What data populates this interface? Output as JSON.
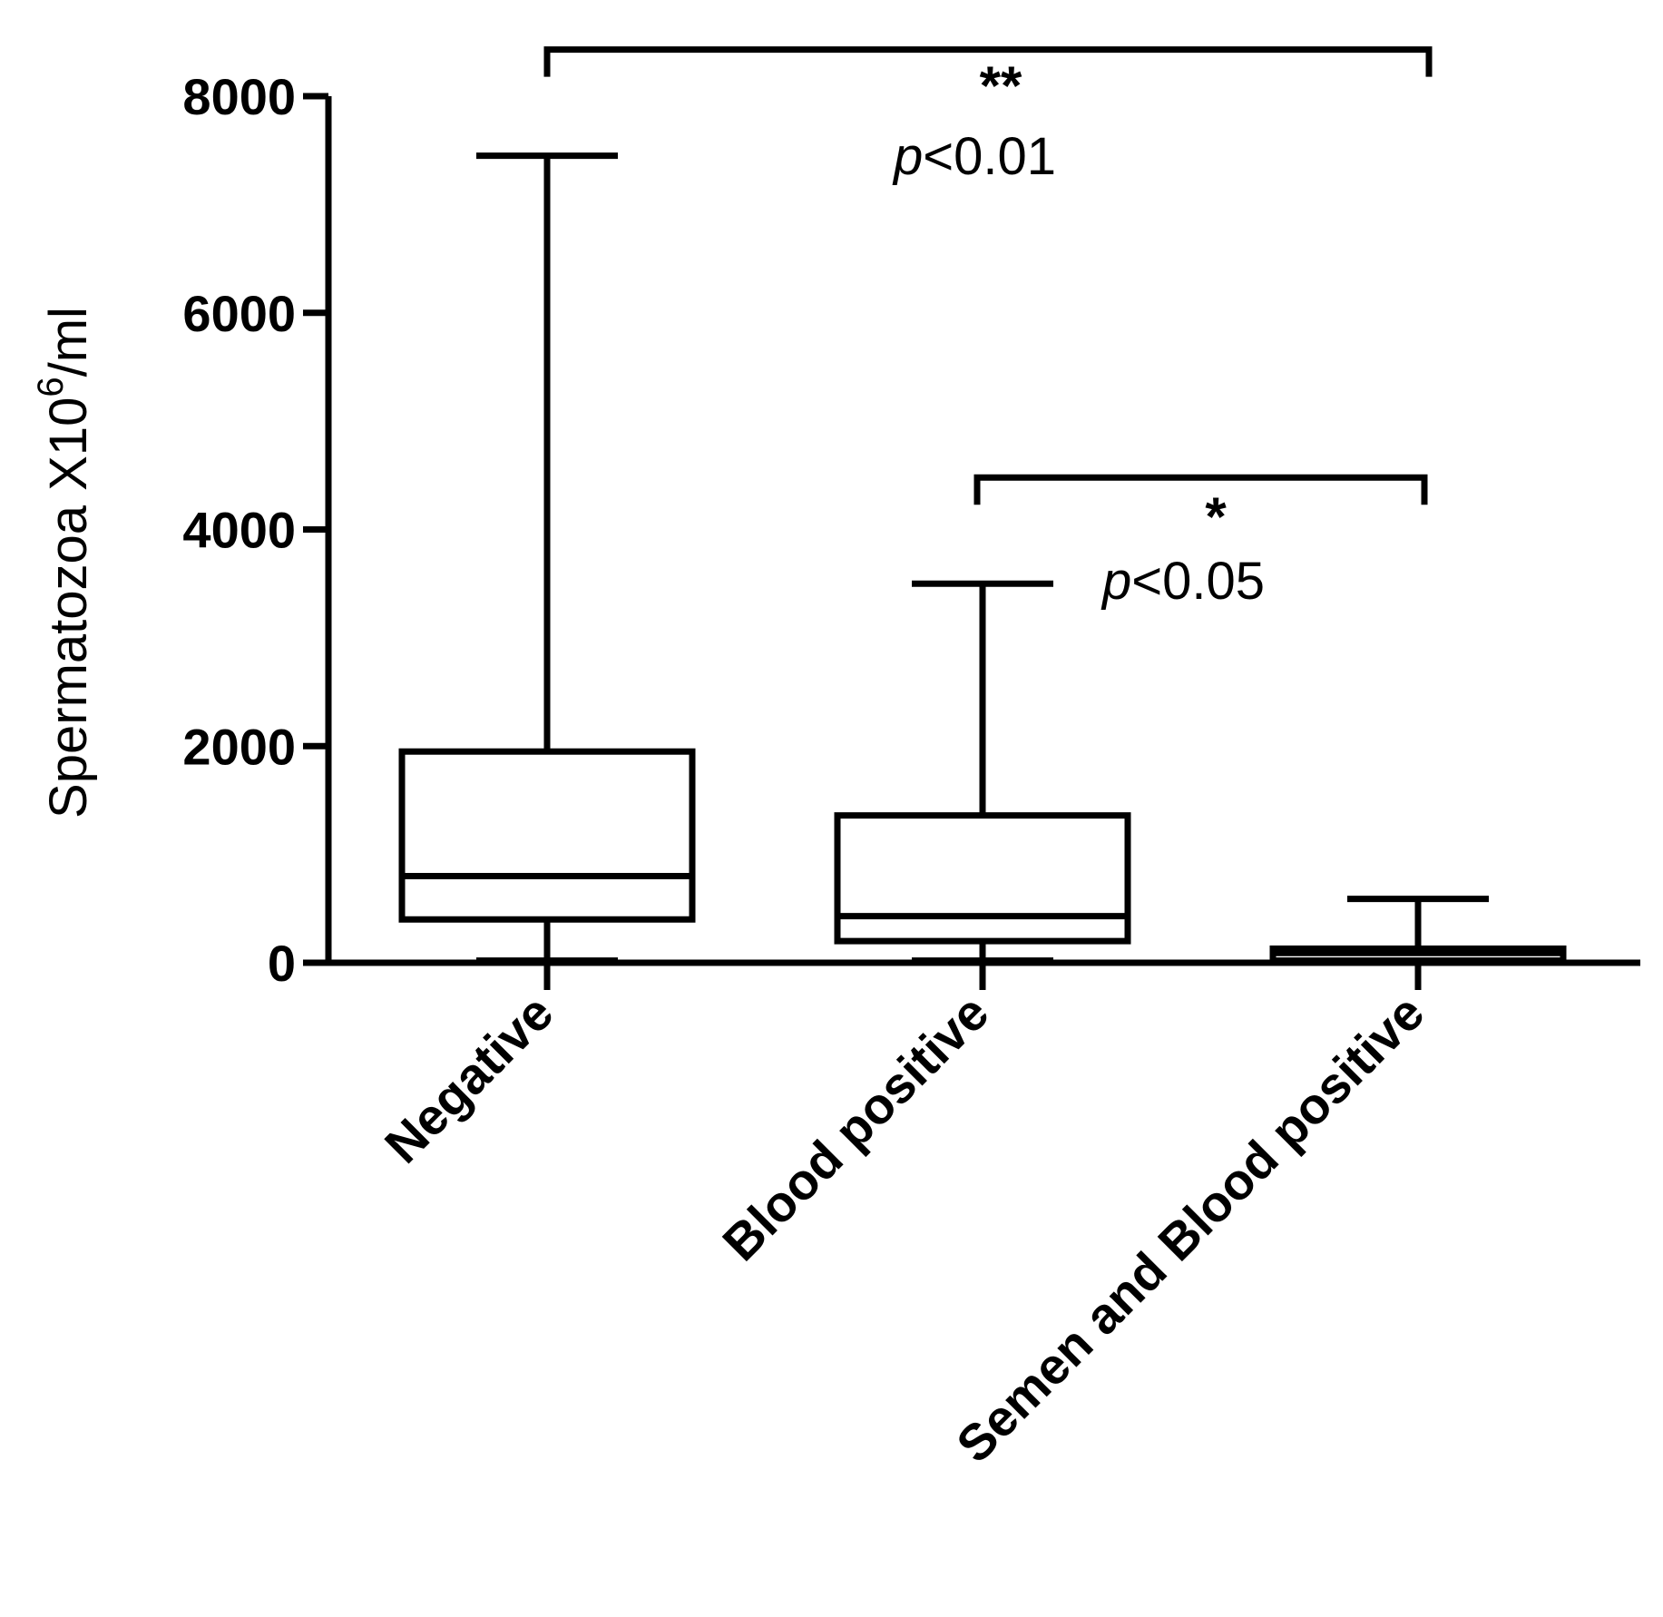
{
  "chart_data": {
    "type": "box",
    "title": "",
    "xlabel": "",
    "ylabel": {
      "text": "Spermatozoa X10",
      "superscript": "6",
      "suffix": "/ml"
    },
    "ylim": [
      0,
      8000
    ],
    "yticks": [
      0,
      2000,
      4000,
      6000,
      8000
    ],
    "grid": false,
    "categories": [
      "Negative",
      "Blood positive",
      "Semen and Blood positive"
    ],
    "boxes": [
      {
        "category": "Negative",
        "min": 20,
        "q1": 400,
        "median": 800,
        "q3": 1950,
        "max": 7450
      },
      {
        "category": "Blood positive",
        "min": 20,
        "q1": 200,
        "median": 430,
        "q3": 1360,
        "max": 3500
      },
      {
        "category": "Semen and Blood positive",
        "min": 0,
        "q1": 20,
        "median": 90,
        "q3": 130,
        "max": 590
      }
    ],
    "comparisons": [
      {
        "from": 0,
        "to": 2,
        "stars": "**",
        "p_label": "p",
        "p_text": "<0.01",
        "y": 8430
      },
      {
        "from": 1,
        "to": 2,
        "stars": "*",
        "p_label": "p",
        "p_text": "<0.05",
        "y": 4480
      }
    ],
    "colors": {
      "ink": "#000000",
      "box_fill": "#ffffff",
      "background": "#ffffff"
    }
  }
}
